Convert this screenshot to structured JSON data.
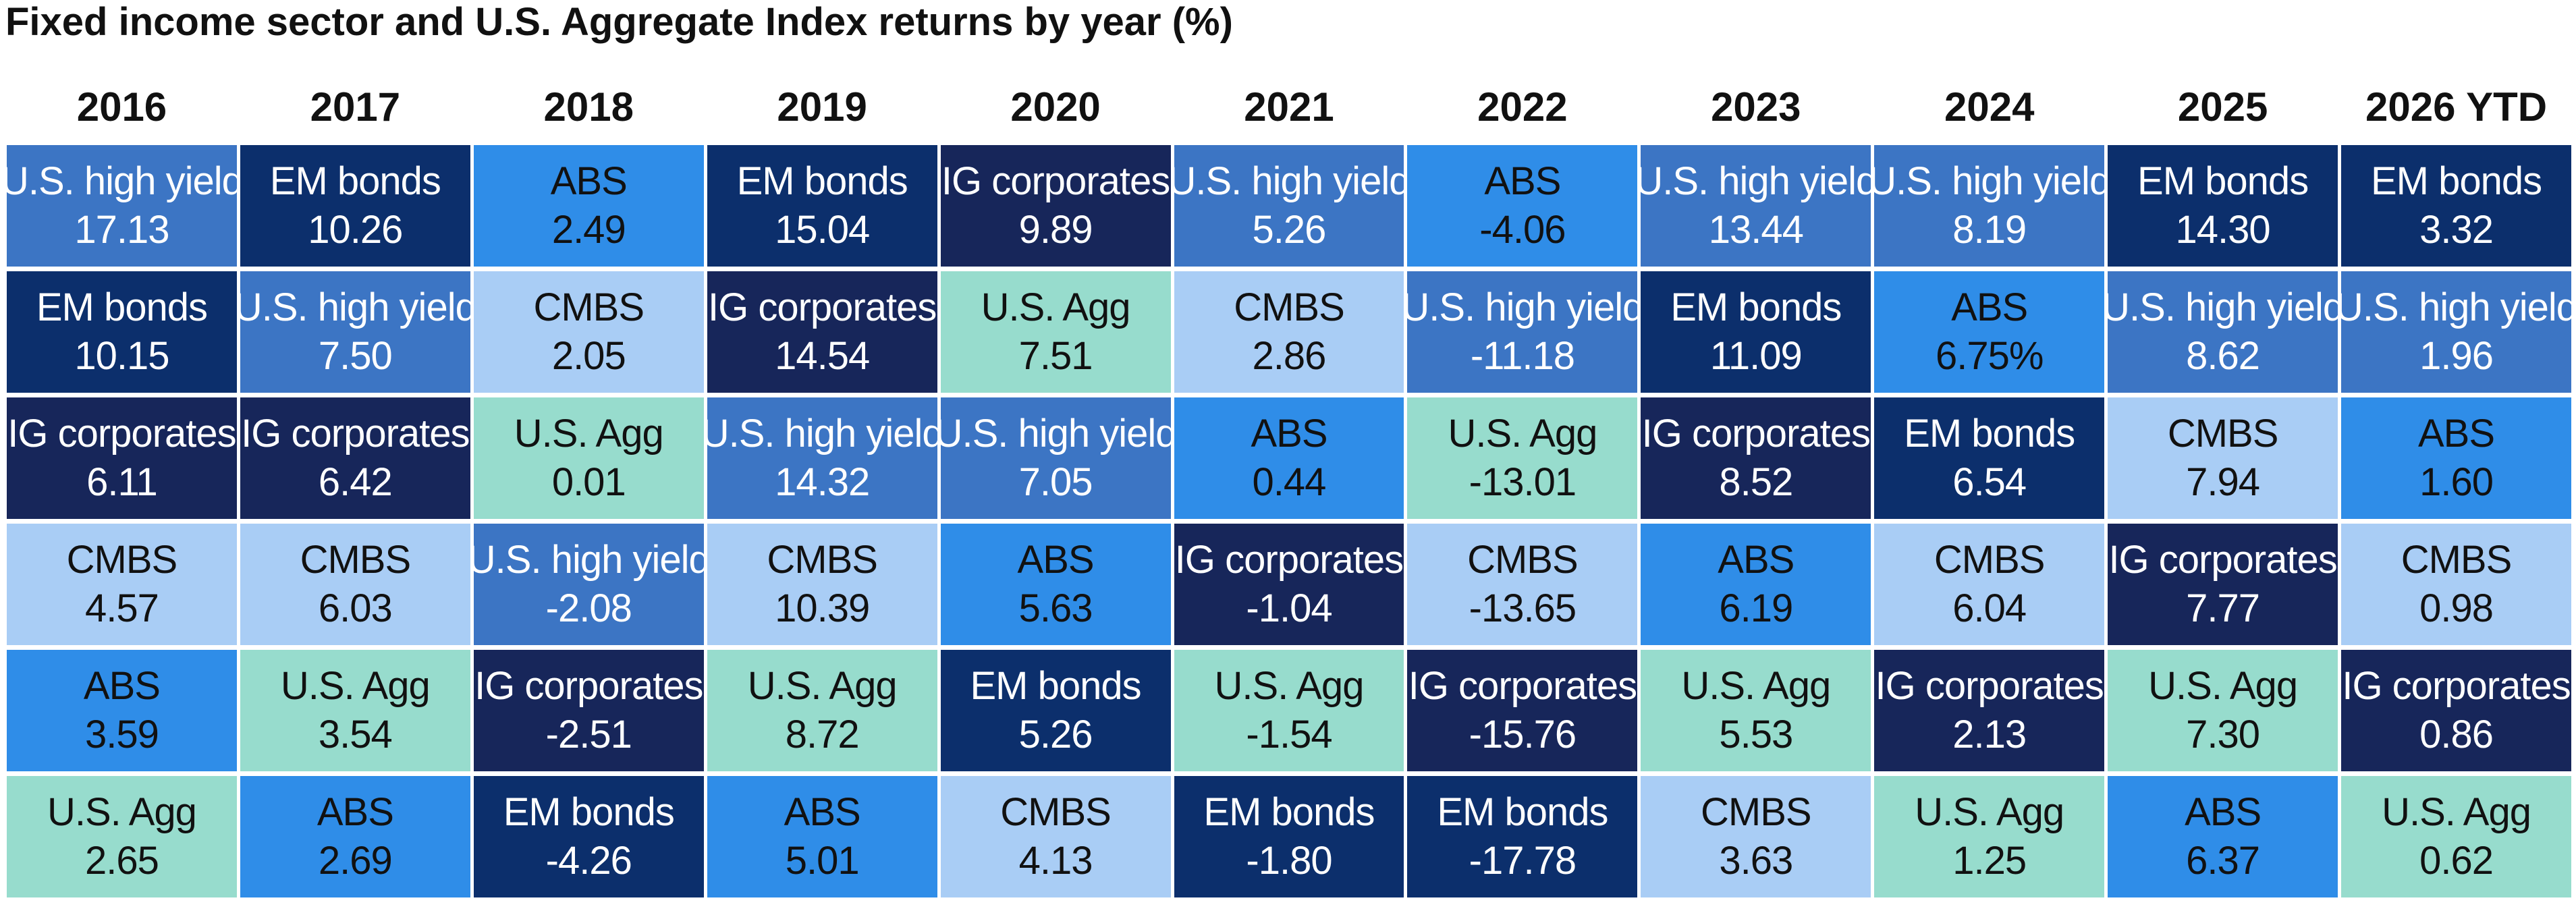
{
  "title": "Fixed income sector and U.S. Aggregate Index returns by year (%)",
  "colors": {
    "U.S. high yield": {
      "bg": "#3c75c4",
      "fg": "#ffffff"
    },
    "EM bonds": {
      "bg": "#0c2f6c",
      "fg": "#ffffff"
    },
    "ABS": {
      "bg": "#2f8de8",
      "fg": "#111111"
    },
    "IG corporates": {
      "bg": "#17265a",
      "fg": "#ffffff"
    },
    "CMBS": {
      "bg": "#a9cdf5",
      "fg": "#111111"
    },
    "U.S. Agg": {
      "bg": "#97dccd",
      "fg": "#111111"
    }
  },
  "chart_data": {
    "type": "table",
    "title": "Fixed income sector and U.S. Aggregate Index returns by year (%)",
    "columns": [
      {
        "year": "2016",
        "cells": [
          {
            "sector": "U.S. high yield",
            "value": "17.13"
          },
          {
            "sector": "EM bonds",
            "value": "10.15"
          },
          {
            "sector": "IG corporates",
            "value": "6.11"
          },
          {
            "sector": "CMBS",
            "value": "4.57"
          },
          {
            "sector": "ABS",
            "value": "3.59"
          },
          {
            "sector": "U.S. Agg",
            "value": "2.65"
          }
        ]
      },
      {
        "year": "2017",
        "cells": [
          {
            "sector": "EM bonds",
            "value": "10.26"
          },
          {
            "sector": "U.S. high yield",
            "value": "7.50"
          },
          {
            "sector": "IG corporates",
            "value": "6.42"
          },
          {
            "sector": "CMBS",
            "value": "6.03"
          },
          {
            "sector": "U.S. Agg",
            "value": "3.54"
          },
          {
            "sector": "ABS",
            "value": "2.69"
          }
        ]
      },
      {
        "year": "2018",
        "cells": [
          {
            "sector": "ABS",
            "value": "2.49"
          },
          {
            "sector": "CMBS",
            "value": "2.05"
          },
          {
            "sector": "U.S. Agg",
            "value": "0.01"
          },
          {
            "sector": "U.S. high yield",
            "value": "-2.08"
          },
          {
            "sector": "IG corporates",
            "value": "-2.51"
          },
          {
            "sector": "EM bonds",
            "value": "-4.26"
          }
        ]
      },
      {
        "year": "2019",
        "cells": [
          {
            "sector": "EM bonds",
            "value": "15.04"
          },
          {
            "sector": "IG corporates",
            "value": "14.54"
          },
          {
            "sector": "U.S. high yield",
            "value": "14.32"
          },
          {
            "sector": "CMBS",
            "value": "10.39"
          },
          {
            "sector": "U.S. Agg",
            "value": "8.72"
          },
          {
            "sector": "ABS",
            "value": "5.01"
          }
        ]
      },
      {
        "year": "2020",
        "cells": [
          {
            "sector": "IG corporates",
            "value": "9.89"
          },
          {
            "sector": "U.S. Agg",
            "value": "7.51"
          },
          {
            "sector": "U.S. high yield",
            "value": "7.05"
          },
          {
            "sector": "ABS",
            "value": "5.63"
          },
          {
            "sector": "EM bonds",
            "value": "5.26"
          },
          {
            "sector": "CMBS",
            "value": "4.13"
          }
        ]
      },
      {
        "year": "2021",
        "cells": [
          {
            "sector": "U.S. high yield",
            "value": "5.26"
          },
          {
            "sector": "CMBS",
            "value": "2.86"
          },
          {
            "sector": "ABS",
            "value": "0.44"
          },
          {
            "sector": "IG corporates",
            "value": "-1.04"
          },
          {
            "sector": "U.S. Agg",
            "value": "-1.54"
          },
          {
            "sector": "EM bonds",
            "value": "-1.80"
          }
        ]
      },
      {
        "year": "2022",
        "cells": [
          {
            "sector": "ABS",
            "value": "-4.06"
          },
          {
            "sector": "U.S. high yield",
            "value": "-11.18"
          },
          {
            "sector": "U.S. Agg",
            "value": "-13.01"
          },
          {
            "sector": "CMBS",
            "value": "-13.65"
          },
          {
            "sector": "IG corporates",
            "value": "-15.76"
          },
          {
            "sector": "EM bonds",
            "value": "-17.78"
          }
        ]
      },
      {
        "year": "2023",
        "cells": [
          {
            "sector": "U.S. high yield",
            "value": "13.44"
          },
          {
            "sector": "EM bonds",
            "value": "11.09"
          },
          {
            "sector": "IG corporates",
            "value": "8.52"
          },
          {
            "sector": "ABS",
            "value": "6.19"
          },
          {
            "sector": "U.S. Agg",
            "value": "5.53"
          },
          {
            "sector": "CMBS",
            "value": "3.63"
          }
        ]
      },
      {
        "year": "2024",
        "cells": [
          {
            "sector": "U.S. high yield",
            "value": "8.19"
          },
          {
            "sector": "ABS",
            "value": "6.75%"
          },
          {
            "sector": "EM bonds",
            "value": "6.54"
          },
          {
            "sector": "CMBS",
            "value": "6.04"
          },
          {
            "sector": "IG corporates",
            "value": "2.13"
          },
          {
            "sector": "U.S. Agg",
            "value": "1.25"
          }
        ]
      },
      {
        "year": "2025",
        "cells": [
          {
            "sector": "EM bonds",
            "value": "14.30"
          },
          {
            "sector": "U.S. high yield",
            "value": "8.62"
          },
          {
            "sector": "CMBS",
            "value": "7.94"
          },
          {
            "sector": "IG corporates",
            "value": "7.77"
          },
          {
            "sector": "U.S. Agg",
            "value": "7.30"
          },
          {
            "sector": "ABS",
            "value": "6.37"
          }
        ]
      },
      {
        "year": "2026 YTD",
        "cells": [
          {
            "sector": "EM bonds",
            "value": "3.32"
          },
          {
            "sector": "U.S. high yield",
            "value": "1.96"
          },
          {
            "sector": "ABS",
            "value": "1.60"
          },
          {
            "sector": "CMBS",
            "value": "0.98"
          },
          {
            "sector": "IG corporates",
            "value": "0.86"
          },
          {
            "sector": "U.S. Agg",
            "value": "0.62"
          }
        ]
      }
    ]
  }
}
